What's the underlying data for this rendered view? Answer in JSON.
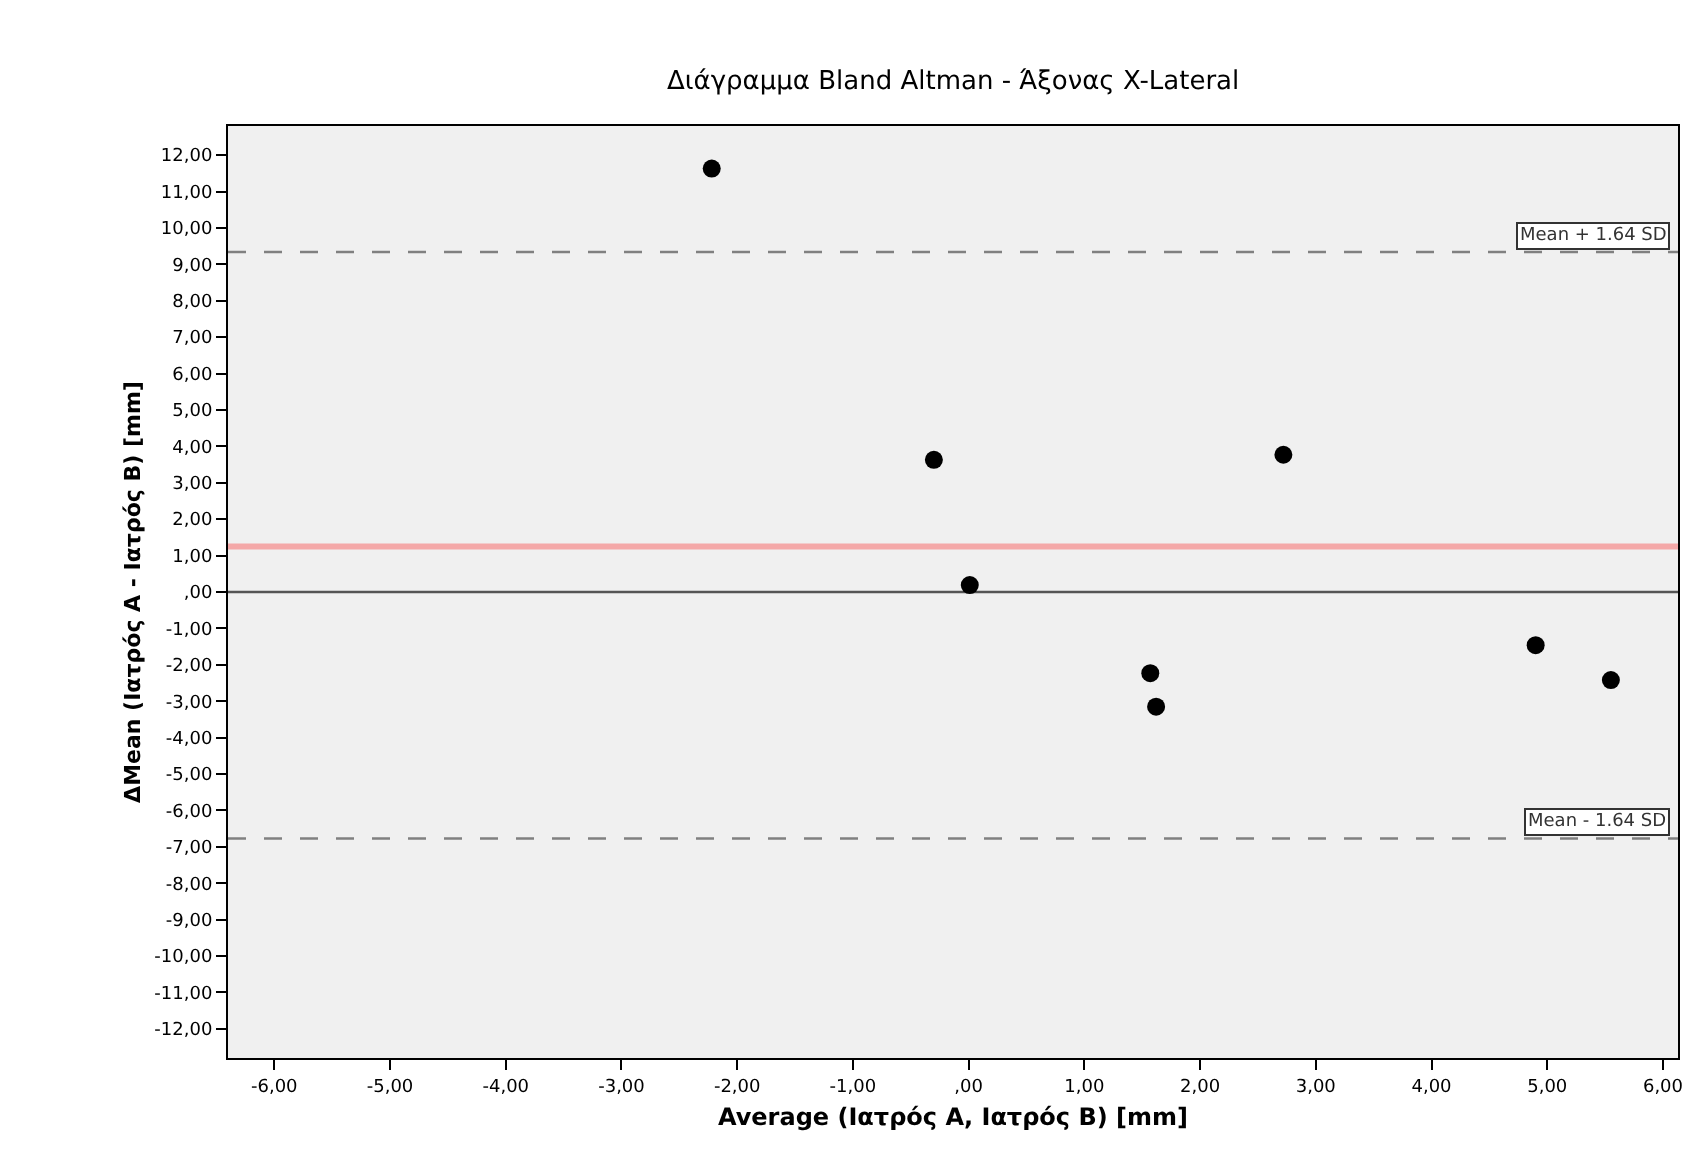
{
  "chart_data": {
    "type": "scatter",
    "title": "Διάγραμμα Bland Altman - Άξονας X-Lateral",
    "xlabel": "Average (Ιατρός Α, Ιατρός Β) [mm]",
    "ylabel": "ΔMean (Ιατρός Α - Ιατρός Β) [mm]",
    "x": [
      -2.22,
      -0.3,
      2.72,
      0.01,
      1.57,
      1.62,
      4.9,
      5.55
    ],
    "series": [
      {
        "color": "#000000",
        "values": [
          11.63,
          3.63,
          3.77,
          0.19,
          -2.23,
          -3.15,
          -1.46,
          -2.42
        ]
      }
    ],
    "marker": "circle",
    "grid": false,
    "xlim": [
      -6.4,
      6.13
    ],
    "ylim": [
      -12.8,
      12.8
    ],
    "xticks": [
      {
        "value": -6,
        "label": "-6,00"
      },
      {
        "value": -5,
        "label": "-5,00"
      },
      {
        "value": -4,
        "label": "-4,00"
      },
      {
        "value": -3,
        "label": "-3,00"
      },
      {
        "value": -2,
        "label": "-2,00"
      },
      {
        "value": -1,
        "label": "-1,00"
      },
      {
        "value": 0,
        "label": ",00"
      },
      {
        "value": 1,
        "label": "1,00"
      },
      {
        "value": 2,
        "label": "2,00"
      },
      {
        "value": 3,
        "label": "3,00"
      },
      {
        "value": 4,
        "label": "4,00"
      },
      {
        "value": 5,
        "label": "5,00"
      },
      {
        "value": 6,
        "label": "6,00"
      }
    ],
    "yticks": [
      {
        "value": 12,
        "label": "12,00"
      },
      {
        "value": 11,
        "label": "11,00"
      },
      {
        "value": 10,
        "label": "10,00"
      },
      {
        "value": 9,
        "label": "9,00"
      },
      {
        "value": 8,
        "label": "8,00"
      },
      {
        "value": 7,
        "label": "7,00"
      },
      {
        "value": 6,
        "label": "6,00"
      },
      {
        "value": 5,
        "label": "5,00"
      },
      {
        "value": 4,
        "label": "4,00"
      },
      {
        "value": 3,
        "label": "3,00"
      },
      {
        "value": 2,
        "label": "2,00"
      },
      {
        "value": 1,
        "label": "1,00"
      },
      {
        "value": 0,
        "label": ",00"
      },
      {
        "value": -1,
        "label": "-1,00"
      },
      {
        "value": -2,
        "label": "-2,00"
      },
      {
        "value": -3,
        "label": "-3,00"
      },
      {
        "value": -4,
        "label": "-4,00"
      },
      {
        "value": -5,
        "label": "-5,00"
      },
      {
        "value": -6,
        "label": "-6,00"
      },
      {
        "value": -7,
        "label": "-7,00"
      },
      {
        "value": -8,
        "label": "-8,00"
      },
      {
        "value": -9,
        "label": "-9,00"
      },
      {
        "value": -10,
        "label": "-10,00"
      },
      {
        "value": -11,
        "label": "-11,00"
      },
      {
        "value": -12,
        "label": "-12,00"
      }
    ],
    "ref_lines": [
      {
        "axis": "y",
        "value": 9.34,
        "label": "Mean + 1.64 SD",
        "color": "#808080",
        "line_style": "dashed"
      },
      {
        "axis": "y",
        "value": -6.77,
        "label": "Mean - 1.64 SD",
        "color": "#808080",
        "line_style": "dashed"
      },
      {
        "axis": "y",
        "value": 1.25,
        "color": "#f4a8a8",
        "line_style": "solid"
      },
      {
        "axis": "y",
        "value": 0,
        "color": "#555555",
        "line_style": "solid"
      }
    ]
  }
}
